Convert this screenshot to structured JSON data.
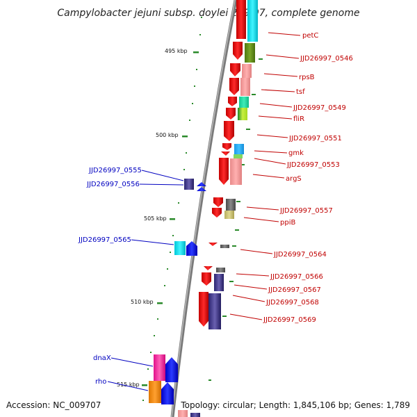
{
  "title": "Campylobacter jejuni subsp. doylei 269.97, complete genome",
  "footer": {
    "accession": "Accession: NC_009707",
    "topology": "Topology: circular; Length: 1,845,106 bp; Genes: 1,789"
  },
  "scale_labels": [
    "495 kbp",
    "500 kbp",
    "505 kbp",
    "510 kbp",
    "515 kbp"
  ],
  "colors": {
    "forward_label": "#c00000",
    "reverse_label": "#0000c0",
    "backbone": "#8a8a8a",
    "tick": "#2a8a2a"
  },
  "genes_right": [
    {
      "label": "petC",
      "cog": "cyan"
    },
    {
      "label": "JJD26997_0546",
      "cog": "olive"
    },
    {
      "label": "rpsB",
      "cog": "pink"
    },
    {
      "label": "tsf",
      "cog": "pink"
    },
    {
      "label": "JJD26997_0549",
      "cog": "teal-green"
    },
    {
      "label": "fliR",
      "cog": "lime"
    },
    {
      "label": "JJD26997_0551",
      "cog": "none"
    },
    {
      "label": "gmk",
      "cog": "sky-blue"
    },
    {
      "label": "JJD26997_0553",
      "cog": "light-green"
    },
    {
      "label": "argS",
      "cog": "pink"
    },
    {
      "label": "JJD26997_0557",
      "cog": "gray"
    },
    {
      "label": "ppiB",
      "cog": "khaki"
    },
    {
      "label": "JJD26997_0564",
      "cog": "gray"
    },
    {
      "label": "JJD26997_0566",
      "cog": "gray"
    },
    {
      "label": "JJD26997_0567",
      "cog": "slate-blue"
    },
    {
      "label": "JJD26997_0568",
      "cog": "slate-blue"
    },
    {
      "label": "JJD26997_0569",
      "cog": "slate-blue"
    }
  ],
  "genes_left": [
    {
      "label": "JJD26997_0555",
      "cog": "slate-blue"
    },
    {
      "label": "JJD26997_0556",
      "cog": "blue"
    },
    {
      "label": "JJD26997_0565",
      "cog": "cyan"
    },
    {
      "label": "dnaX",
      "cog": "magenta"
    },
    {
      "label": "rho",
      "cog": "orange"
    }
  ]
}
